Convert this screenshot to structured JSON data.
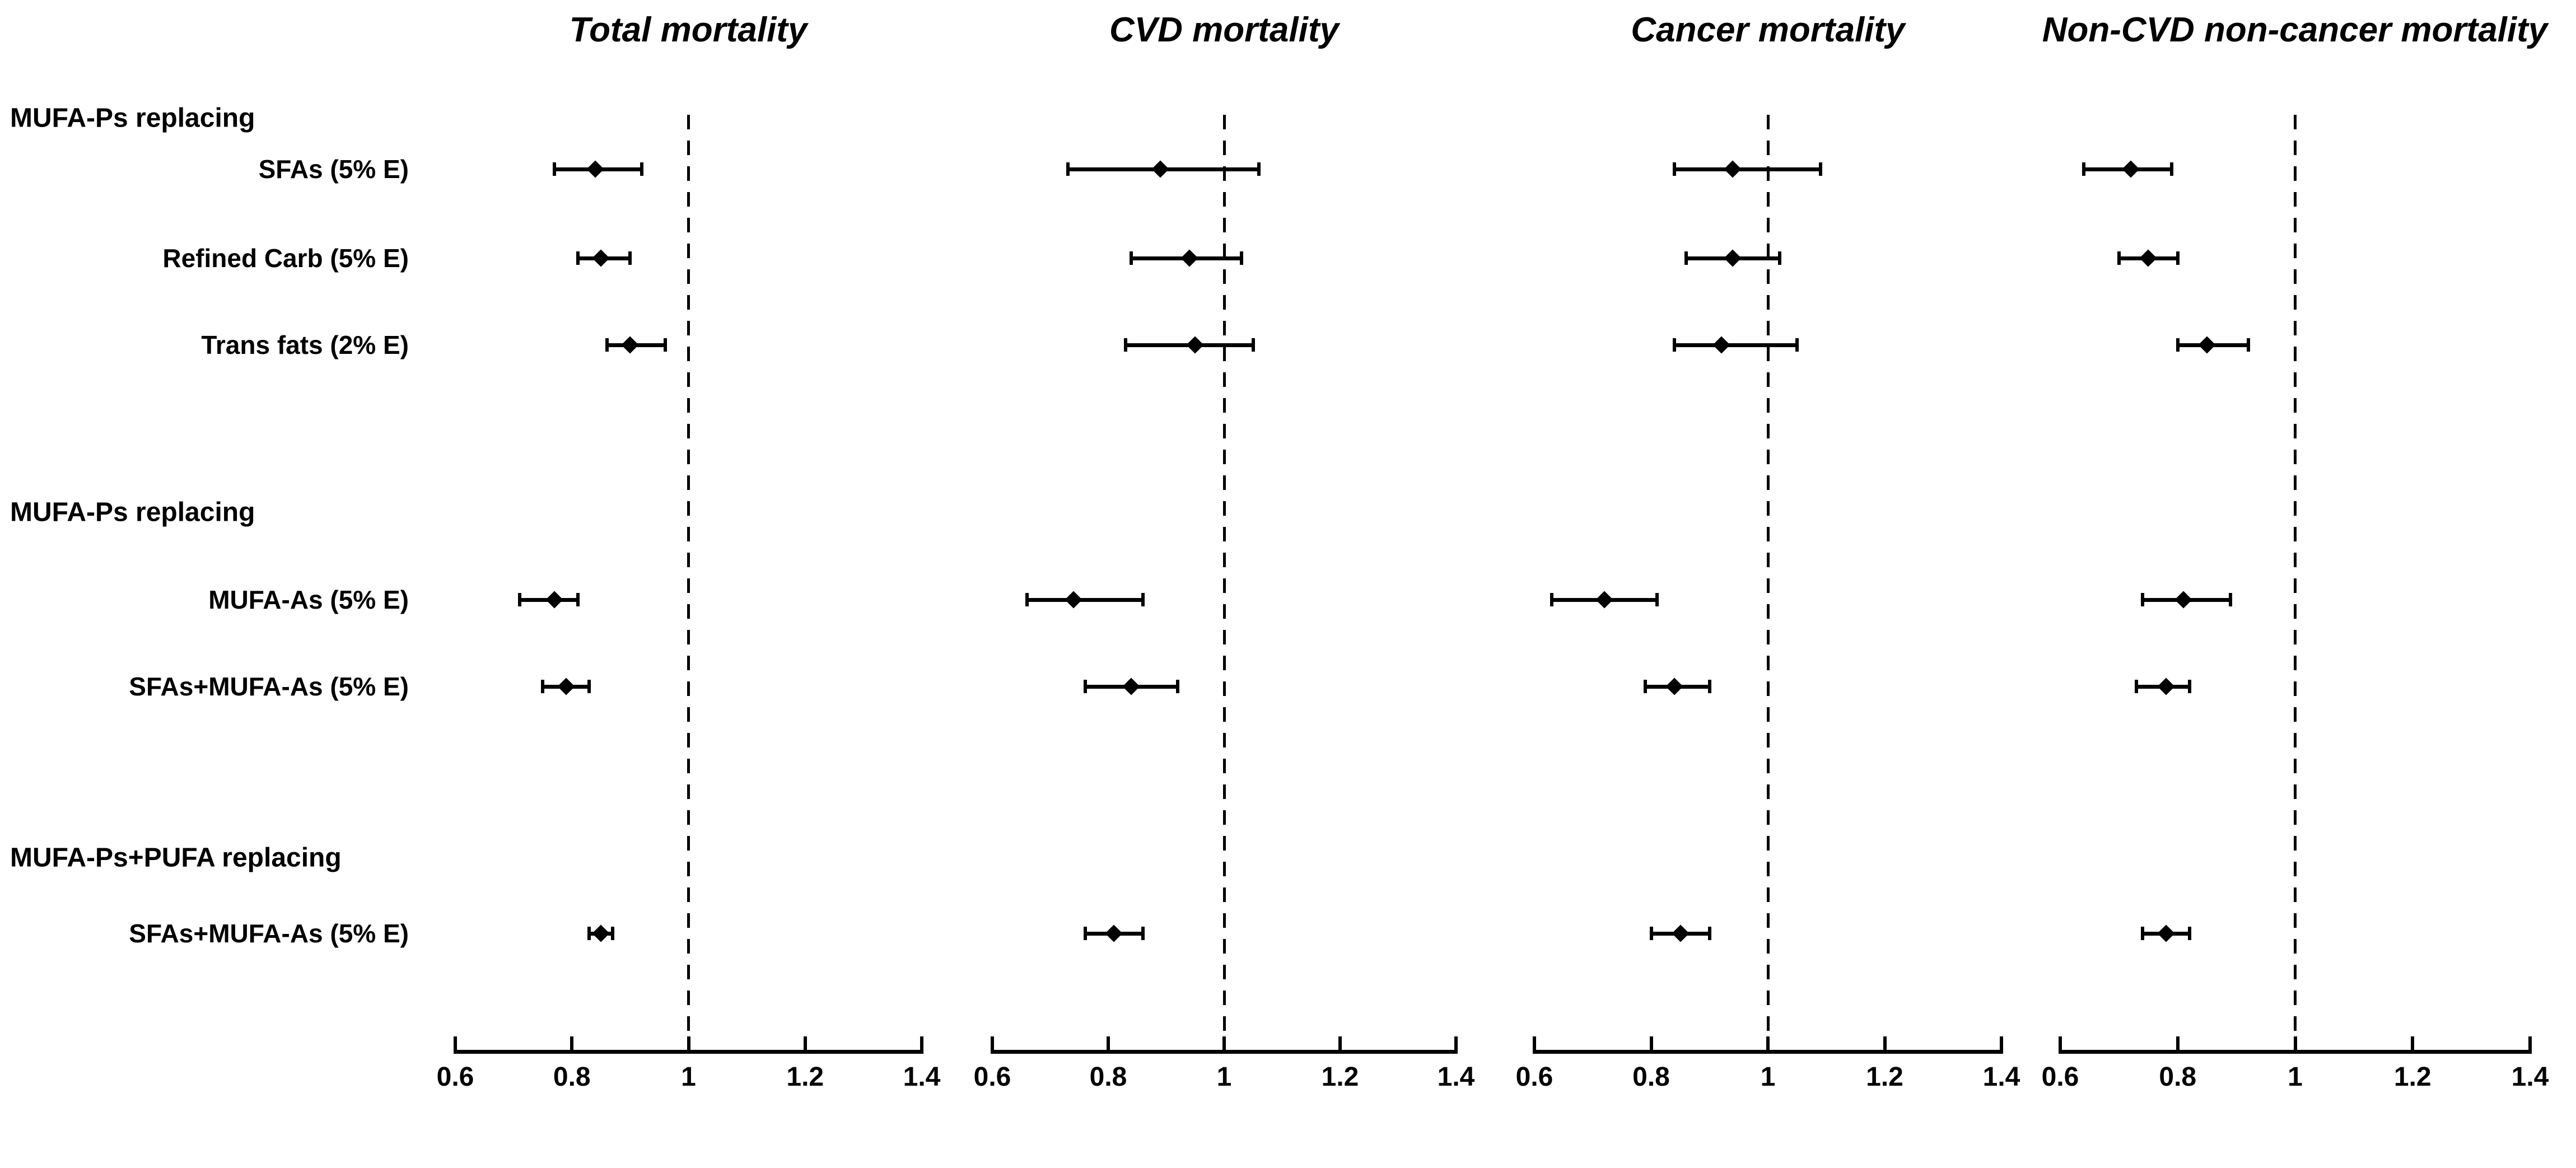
{
  "figure": {
    "kind": "forest-plot",
    "background_color": "#ffffff",
    "ink_color": "#000000"
  },
  "chart_data": {
    "type": "scatter",
    "subtype": "forest-plot-hazard-ratios",
    "xlim": [
      0.6,
      1.4
    ],
    "x_ticks": [
      "0.6",
      "0.8",
      "1",
      "1.2",
      "1.4"
    ],
    "x_tick_values": [
      0.6,
      0.8,
      1,
      1.2,
      1.4
    ],
    "reference_line_x": 1,
    "grid": "off",
    "legend": "none",
    "groups": [
      {
        "header": "MUFA-Ps replacing",
        "rows": [
          "SFAs (5% E)",
          "Refined Carb (5% E)",
          "Trans fats (2% E)"
        ]
      },
      {
        "header": "MUFA-Ps replacing",
        "rows": [
          "MUFA-As (5% E)",
          "SFAs+MUFA-As (5% E)"
        ]
      },
      {
        "header": "MUFA-Ps+PUFA replacing",
        "rows": [
          "SFAs+MUFA-As (5% E)"
        ]
      }
    ],
    "panels": [
      {
        "title": "Total mortality",
        "estimates": [
          {
            "row": "SFAs (5% E)",
            "hr": 0.84,
            "ci_low": 0.77,
            "ci_high": 0.92
          },
          {
            "row": "Refined Carb (5% E)",
            "hr": 0.85,
            "ci_low": 0.81,
            "ci_high": 0.9
          },
          {
            "row": "Trans fats (2% E)",
            "hr": 0.9,
            "ci_low": 0.86,
            "ci_high": 0.96
          },
          {
            "row": "MUFA-As (5% E)",
            "hr": 0.77,
            "ci_low": 0.71,
            "ci_high": 0.81
          },
          {
            "row": "SFAs+MUFA-As (5% E)",
            "hr": 0.79,
            "ci_low": 0.75,
            "ci_high": 0.83
          },
          {
            "row": "SFAs+MUFA-As (5% E)",
            "hr": 0.85,
            "ci_low": 0.83,
            "ci_high": 0.87
          }
        ]
      },
      {
        "title": "CVD mortality",
        "estimates": [
          {
            "row": "SFAs (5% E)",
            "hr": 0.89,
            "ci_low": 0.73,
            "ci_high": 1.06
          },
          {
            "row": "Refined Carb (5% E)",
            "hr": 0.94,
            "ci_low": 0.84,
            "ci_high": 1.03
          },
          {
            "row": "Trans fats (2% E)",
            "hr": 0.95,
            "ci_low": 0.83,
            "ci_high": 1.05
          },
          {
            "row": "MUFA-As (5% E)",
            "hr": 0.74,
            "ci_low": 0.66,
            "ci_high": 0.86
          },
          {
            "row": "SFAs+MUFA-As (5% E)",
            "hr": 0.84,
            "ci_low": 0.76,
            "ci_high": 0.92
          },
          {
            "row": "SFAs+MUFA-As (5% E)",
            "hr": 0.81,
            "ci_low": 0.76,
            "ci_high": 0.86
          }
        ]
      },
      {
        "title": "Cancer mortality",
        "estimates": [
          {
            "row": "SFAs (5% E)",
            "hr": 0.94,
            "ci_low": 0.84,
            "ci_high": 1.09
          },
          {
            "row": "Refined Carb (5% E)",
            "hr": 0.94,
            "ci_low": 0.86,
            "ci_high": 1.02
          },
          {
            "row": "Trans fats (2% E)",
            "hr": 0.92,
            "ci_low": 0.84,
            "ci_high": 1.05
          },
          {
            "row": "MUFA-As (5% E)",
            "hr": 0.72,
            "ci_low": 0.63,
            "ci_high": 0.81
          },
          {
            "row": "SFAs+MUFA-As (5% E)",
            "hr": 0.84,
            "ci_low": 0.79,
            "ci_high": 0.9
          },
          {
            "row": "SFAs+MUFA-As (5% E)",
            "hr": 0.85,
            "ci_low": 0.8,
            "ci_high": 0.9
          }
        ]
      },
      {
        "title": "Non-CVD non-cancer mortality",
        "estimates": [
          {
            "row": "SFAs (5% E)",
            "hr": 0.72,
            "ci_low": 0.64,
            "ci_high": 0.79
          },
          {
            "row": "Refined Carb (5% E)",
            "hr": 0.75,
            "ci_low": 0.7,
            "ci_high": 0.8
          },
          {
            "row": "Trans fats (2% E)",
            "hr": 0.85,
            "ci_low": 0.8,
            "ci_high": 0.92
          },
          {
            "row": "MUFA-As (5% E)",
            "hr": 0.81,
            "ci_low": 0.74,
            "ci_high": 0.89
          },
          {
            "row": "SFAs+MUFA-As (5% E)",
            "hr": 0.78,
            "ci_low": 0.73,
            "ci_high": 0.82
          },
          {
            "row": "SFAs+MUFA-As (5% E)",
            "hr": 0.78,
            "ci_low": 0.74,
            "ci_high": 0.82
          }
        ]
      }
    ]
  }
}
